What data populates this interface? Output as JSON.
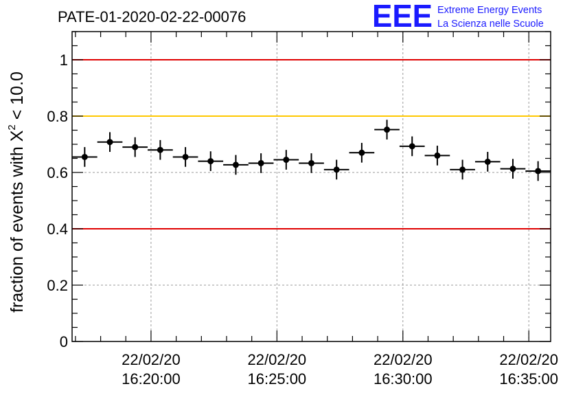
{
  "title": "PATE-01-2020-02-22-00076",
  "logo": {
    "mark": "EEE",
    "line1": "Extreme Energy Events",
    "line2": "La Scienza nelle Scuole",
    "color": "#1a1aff"
  },
  "chart_data": {
    "type": "scatter",
    "title": "PATE-01-2020-02-22-00076",
    "xlabel": "",
    "ylabel_parts": [
      "fraction of events with ",
      "X",
      "2",
      " < 10.0"
    ],
    "ylim": [
      0,
      1.1
    ],
    "xlim": [
      "2020-02-22 16:16:52",
      "2020-02-22 16:35:52"
    ],
    "grid": true,
    "y_ticks": [
      "0",
      "0.2",
      "0.4",
      "0.6",
      "0.8",
      "1"
    ],
    "x_ticks": [
      {
        "time": "2020-02-22 16:20:00",
        "label_date": "22/02/20",
        "label_time": "16:20:00"
      },
      {
        "time": "2020-02-22 16:25:00",
        "label_date": "22/02/20",
        "label_time": "16:25:00"
      },
      {
        "time": "2020-02-22 16:30:00",
        "label_date": "22/02/20",
        "label_time": "16:30:00"
      },
      {
        "time": "2020-02-22 16:35:00",
        "label_date": "22/02/20",
        "label_time": "16:35:00"
      }
    ],
    "reference_lines": [
      {
        "y": 1.0,
        "color": "#e00000"
      },
      {
        "y": 0.8,
        "color": "#ffc800"
      },
      {
        "y": 0.4,
        "color": "#e00000"
      }
    ],
    "series": [
      {
        "bin_width_seconds": 60,
        "error_y": 0.035,
        "x": [
          "16:17:22",
          "16:18:22",
          "16:19:22",
          "16:20:22",
          "16:21:22",
          "16:22:22",
          "16:23:22",
          "16:24:22",
          "16:25:22",
          "16:26:22",
          "16:27:22",
          "16:28:22",
          "16:29:22",
          "16:30:22",
          "16:31:22",
          "16:32:22",
          "16:33:22",
          "16:34:22",
          "16:35:22"
        ],
        "y": [
          0.655,
          0.708,
          0.69,
          0.68,
          0.655,
          0.64,
          0.627,
          0.633,
          0.645,
          0.633,
          0.61,
          0.67,
          0.752,
          0.693,
          0.66,
          0.61,
          0.638,
          0.613,
          0.605
        ]
      }
    ]
  }
}
